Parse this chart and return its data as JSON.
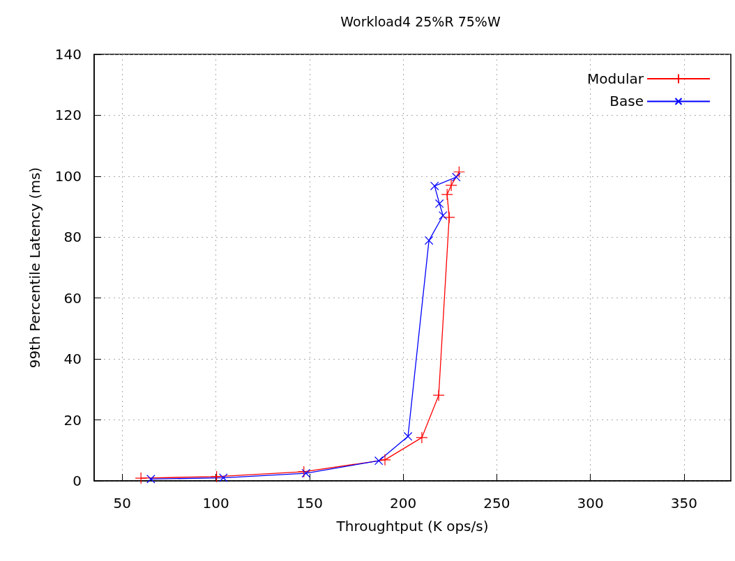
{
  "chart_data": {
    "type": "line",
    "title": "Workload4 25%R 75%W",
    "xlabel": "Throughtput (K ops/s)",
    "ylabel": "99th Percentile Latency (ms)",
    "xlim": [
      35,
      375
    ],
    "xticks": [
      50,
      100,
      150,
      200,
      250,
      300,
      350
    ],
    "ylim": [
      0,
      140
    ],
    "yticks": [
      0,
      20,
      40,
      60,
      80,
      100,
      120,
      140
    ],
    "grid": true,
    "legend": "top right",
    "marker": "cross",
    "series": [
      {
        "name": "Modular",
        "color": "#ff0000",
        "x": [
          60,
          100.4,
          147,
          190.3,
          210,
          219,
          224.6,
          223.5,
          225.7,
          229.9
        ],
        "values": [
          0.9,
          1.4,
          3,
          6.9,
          14.2,
          28.1,
          86.5,
          94,
          97,
          101.4
        ]
      },
      {
        "name": "Base",
        "color": "#0000ff",
        "x": [
          65.3,
          104,
          148.1,
          187,
          202.6,
          213.8,
          221.3,
          219.4,
          216.8,
          228.4
        ],
        "values": [
          0.6,
          1,
          2.5,
          6.6,
          14.6,
          78.9,
          87.1,
          91,
          96.8,
          99.7
        ]
      }
    ]
  }
}
